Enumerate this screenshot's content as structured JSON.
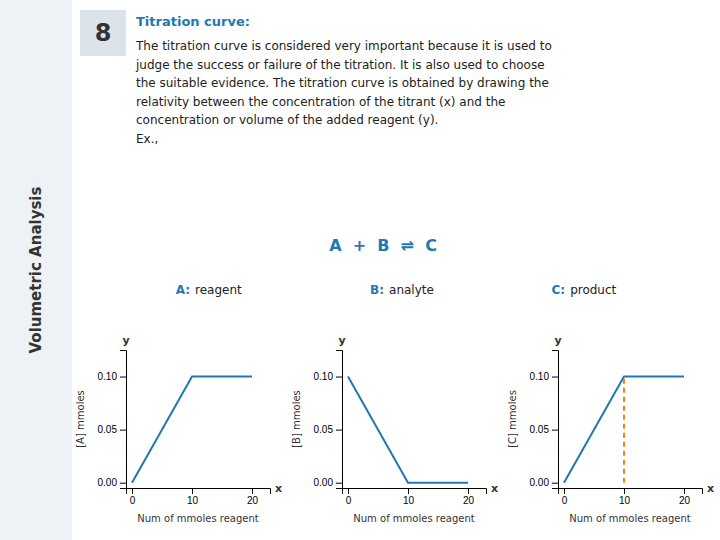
{
  "chart_data": [
    {
      "type": "line",
      "annotations": [
        "Volumetric Analysis",
        "8",
        "Titration curve:",
        "The titration curve is considered very important because it is used to\njudge the success or failure of the titration. It is also used to choose\nthe suitable evidence. The titration curve is obtained by drawing the\nrelativity between the concentration of the titrant (x) and the\nconcentration or volume of the added reagent (y).\nEx.,",
        "A  +  B  ⇌  C",
        "A:",
        "reagent",
        "B:",
        "analyte",
        "C:",
        "product",
        "x",
        "y"
      ],
      "xlabel": "Num of mmoles reagent",
      "ylabel": "[A] mmoles",
      "x": [
        0,
        10,
        20
      ],
      "series": [
        {
          "values": [
            0.0,
            0.1,
            0.1
          ]
        }
      ],
      "xlim": [
        -1,
        23
      ],
      "ylim": [
        -0.005,
        0.125
      ],
      "xticks": [
        0,
        10,
        20
      ],
      "yticks": [
        {
          "value": 0.0,
          "label": "0.00"
        },
        0.05,
        {
          "value": 0.1,
          "label": "0.10"
        }
      ]
    },
    {
      "type": "line",
      "annotations": [
        "x",
        "y"
      ],
      "xlabel": "Num of mmoles reagent",
      "ylabel": "[B] mmoles",
      "x": [
        0,
        10,
        20
      ],
      "series": [
        {
          "values": [
            0.1,
            0.0,
            0.0
          ]
        }
      ],
      "xlim": [
        -1,
        23
      ],
      "ylim": [
        -0.005,
        0.125
      ],
      "xticks": [
        0,
        10,
        20
      ],
      "yticks": [
        {
          "value": 0.0,
          "label": "0.00"
        },
        0.05,
        {
          "value": 0.1,
          "label": "0.10"
        }
      ]
    },
    {
      "type": "line",
      "annotations": [
        "x",
        "y"
      ],
      "xlabel": "Num of mmoles reagent",
      "ylabel": "[C] mmoles",
      "x": [
        0,
        10,
        20
      ],
      "series": [
        {
          "values": [
            0.0,
            0.1,
            0.1
          ]
        },
        {
          "x": [
            10,
            10
          ],
          "values": [
            0.0,
            0.1
          ],
          "line_style": "dashed"
        }
      ],
      "xlim": [
        -1,
        23
      ],
      "ylim": [
        -0.005,
        0.125
      ],
      "xticks": [
        0,
        10,
        20
      ],
      "yticks": [
        {
          "value": 0.0,
          "label": "0.00"
        },
        0.05,
        {
          "value": 0.1,
          "label": "0.10"
        }
      ]
    }
  ]
}
